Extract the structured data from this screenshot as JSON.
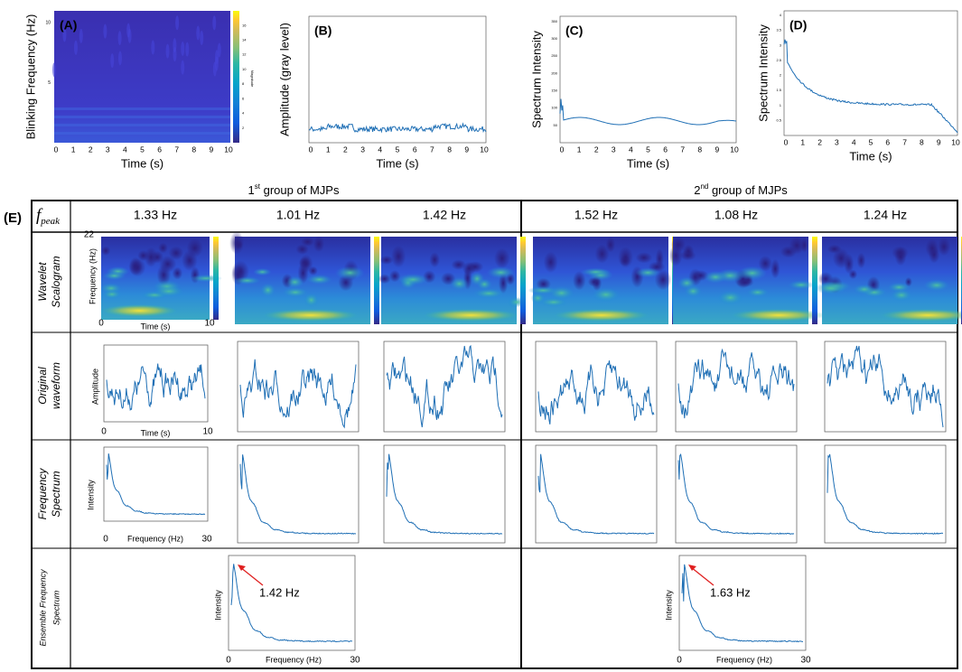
{
  "panels": [
    {
      "label": "(A)",
      "ylabel": "Blinking Frequency (Hz)",
      "xlabel": "Time (s)",
      "xticks": [
        0,
        1,
        2,
        3,
        4,
        5,
        6,
        7,
        8,
        9,
        10
      ],
      "yticks": [
        5,
        10
      ],
      "colorbar_ticks": [
        2,
        4,
        6,
        8,
        10,
        12,
        14,
        16
      ],
      "colorbar_label": "Magnitude"
    },
    {
      "label": "(B)",
      "ylabel": "Amplitude (gray level)",
      "xlabel": "Time (s)",
      "xticks": [
        0,
        1,
        2,
        3,
        4,
        5,
        6,
        7,
        8,
        9,
        10
      ]
    },
    {
      "label": "(C)",
      "ylabel": "Spectrum Intensity",
      "xlabel": "Time (s)",
      "xticks": [
        0,
        1,
        2,
        3,
        4,
        5,
        6,
        7,
        8,
        9,
        10
      ],
      "yticks": [
        50,
        100,
        150,
        200,
        250,
        300,
        350
      ]
    },
    {
      "label": "(D)",
      "ylabel": "Spectrum Intensity",
      "xlabel": "Time (s)",
      "xticks": [
        0,
        1,
        2,
        3,
        4,
        5,
        6,
        7,
        8,
        9,
        10
      ],
      "yticks": [
        0.5,
        1,
        1.5,
        2,
        2.5,
        3,
        3.5,
        4
      ]
    }
  ],
  "groups": [
    {
      "ordinal": "1",
      "suffix": "st",
      "text": " group of MJPs"
    },
    {
      "ordinal": "2",
      "suffix": "nd",
      "text": " group of MJPs"
    }
  ],
  "table": {
    "label": "(E)",
    "fpeak": {
      "symbol": "f",
      "subscript": "peak"
    },
    "row_headers": [
      [
        "Wavelet",
        "Scalogram"
      ],
      [
        "Original",
        "waveform"
      ],
      [
        "Frequency",
        "Spectrum"
      ],
      [
        "Ensemble Frequency",
        "Spectrum"
      ]
    ],
    "peaks": [
      "1.33 Hz",
      "1.01 Hz",
      "1.42 Hz",
      "1.52 Hz",
      "1.08 Hz",
      "1.24 Hz"
    ],
    "axes": {
      "scalogram": {
        "ymax": "22",
        "ylabel": "Frequency (Hz)",
        "xmin": "0",
        "xmax": "10",
        "xlabel": "Time (s)"
      },
      "waveform": {
        "ylabel": "Amplitude",
        "xmin": "0",
        "xmax": "10",
        "xlabel": "Time (s)"
      },
      "spectrum": {
        "ylabel": "Intensity",
        "xmin": "0",
        "xmax": "30",
        "xlabel": "Frequency (Hz)"
      }
    },
    "ensemble": [
      {
        "annotation": "1.42 Hz"
      },
      {
        "annotation": "1.63 Hz"
      }
    ]
  }
}
